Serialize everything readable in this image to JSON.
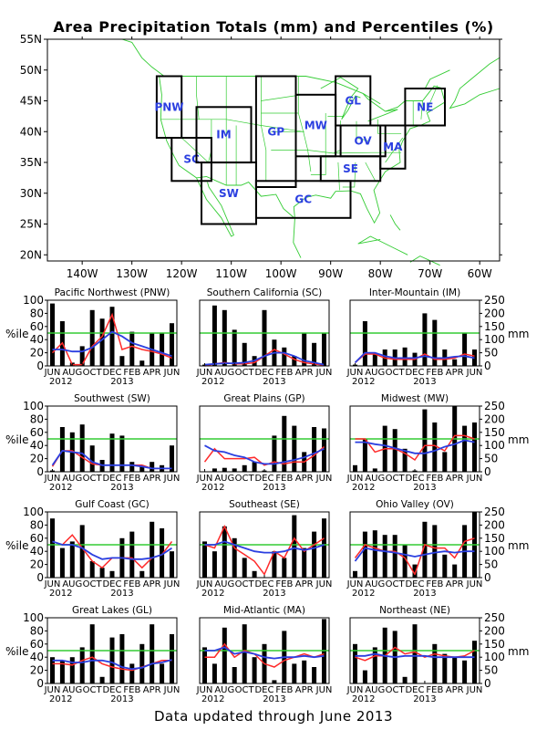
{
  "title": "Area Precipitation Totals (mm) and Percentiles (%)",
  "footer": "Data updated through June 2013",
  "map": {
    "lon_ticks": [
      "140W",
      "130W",
      "120W",
      "110W",
      "100W",
      "90W",
      "80W",
      "70W",
      "60W"
    ],
    "lat_ticks": [
      "55N",
      "50N",
      "45N",
      "40N",
      "35N",
      "30N",
      "25N",
      "20N"
    ],
    "regions": [
      {
        "code": "PNW",
        "lon": [
          -125,
          -120
        ],
        "lat": [
          39,
          49
        ]
      },
      {
        "code": "SC",
        "lon": [
          -122,
          -114
        ],
        "lat": [
          32,
          39
        ]
      },
      {
        "code": "IM",
        "lon": [
          -117,
          -106
        ],
        "lat": [
          35,
          44
        ]
      },
      {
        "code": "SW",
        "lon": [
          -116,
          -105
        ],
        "lat": [
          25,
          35
        ]
      },
      {
        "code": "GP",
        "lon": [
          -105,
          -97
        ],
        "lat": [
          31,
          49
        ]
      },
      {
        "code": "MW",
        "lon": [
          -97,
          -89
        ],
        "lat": [
          36,
          46
        ]
      },
      {
        "code": "GL",
        "lon": [
          -89,
          -82
        ],
        "lat": [
          41,
          49
        ]
      },
      {
        "code": "OV",
        "lon": [
          -88,
          -79
        ],
        "lat": [
          36,
          41
        ]
      },
      {
        "code": "NE",
        "lon": [
          -75,
          -67
        ],
        "lat": [
          41,
          47
        ]
      },
      {
        "code": "MA",
        "lon": [
          -80,
          -75
        ],
        "lat": [
          34,
          41
        ]
      },
      {
        "code": "SE",
        "lon": [
          -92,
          -80
        ],
        "lat": [
          32,
          36
        ]
      },
      {
        "code": "GC",
        "lon": [
          -105,
          -86
        ],
        "lat": [
          26,
          32
        ]
      }
    ],
    "colors": {
      "region_box": "#000000",
      "region_label": "#2b3fe0",
      "map_lines": "#33cc33"
    }
  },
  "chart_data": {
    "type": "bar",
    "months": [
      "JUN",
      "JUL",
      "AUG",
      "SEP",
      "OCT",
      "NOV",
      "DEC",
      "JAN",
      "FEB",
      "MAR",
      "APR",
      "MAY",
      "JUN"
    ],
    "x_tick_labels": [
      "JUN",
      "AUG",
      "OCT",
      "DEC",
      "FEB",
      "APR",
      "JUN"
    ],
    "year_labels": [
      "2012",
      "2013"
    ],
    "left_axis": {
      "label": "%ile",
      "ticks": [
        0,
        20,
        40,
        60,
        80,
        100
      ],
      "ylim": [
        0,
        100
      ]
    },
    "right_axis": {
      "label": "mm",
      "ticks": [
        0,
        50,
        100,
        150,
        200,
        250
      ],
      "ylim": [
        0,
        250
      ]
    },
    "reference_line": 50,
    "colors": {
      "bars": "#000000",
      "red_line": "#ff2a2a",
      "blue_line": "#2b3fe0",
      "reference": "#33cc33"
    },
    "panels": [
      {
        "title": "Pacific Northwest (PNW)",
        "bars": [
          95,
          68,
          5,
          30,
          85,
          72,
          90,
          15,
          52,
          8,
          50,
          50,
          65
        ],
        "red": [
          20,
          35,
          2,
          2,
          30,
          45,
          78,
          25,
          30,
          25,
          22,
          18,
          12
        ],
        "blue": [
          25,
          25,
          22,
          22,
          28,
          40,
          52,
          45,
          35,
          30,
          25,
          20,
          15
        ]
      },
      {
        "title": "Southern California (SC)",
        "bars": [
          2,
          92,
          85,
          55,
          35,
          15,
          85,
          40,
          28,
          15,
          50,
          35,
          50
        ],
        "red": [
          0,
          3,
          5,
          3,
          3,
          5,
          15,
          25,
          18,
          10,
          5,
          3,
          1
        ],
        "blue": [
          2,
          3,
          4,
          4,
          5,
          8,
          15,
          20,
          20,
          15,
          8,
          5,
          2
        ]
      },
      {
        "title": "Inter-Mountain (IM)",
        "bars": [
          2,
          68,
          20,
          25,
          25,
          28,
          20,
          80,
          70,
          25,
          10,
          50,
          25
        ],
        "red": [
          5,
          18,
          18,
          12,
          10,
          10,
          10,
          18,
          10,
          10,
          12,
          18,
          15
        ],
        "blue": [
          5,
          20,
          20,
          15,
          12,
          12,
          12,
          15,
          12,
          12,
          14,
          15,
          12
        ]
      },
      {
        "title": "Southwest (SW)",
        "bars": [
          2,
          68,
          60,
          72,
          40,
          18,
          58,
          55,
          15,
          10,
          15,
          10,
          40
        ],
        "red": [
          8,
          32,
          32,
          22,
          12,
          10,
          10,
          10,
          10,
          10,
          5,
          5,
          5
        ],
        "blue": [
          10,
          32,
          30,
          28,
          15,
          10,
          10,
          10,
          10,
          8,
          5,
          5,
          5
        ]
      },
      {
        "title": "Great Plains (GP)",
        "bars": [
          0,
          5,
          6,
          5,
          10,
          15,
          2,
          55,
          85,
          70,
          30,
          68,
          66
        ],
        "red": [
          15,
          35,
          20,
          20,
          20,
          22,
          10,
          15,
          12,
          15,
          15,
          25,
          38
        ],
        "blue": [
          40,
          32,
          30,
          25,
          22,
          15,
          12,
          12,
          15,
          18,
          22,
          28,
          35
        ]
      },
      {
        "title": "Midwest (MW)",
        "bars": [
          10,
          50,
          5,
          70,
          65,
          35,
          2,
          95,
          75,
          30,
          100,
          70,
          75
        ],
        "red": [
          50,
          50,
          30,
          35,
          35,
          28,
          18,
          40,
          40,
          32,
          55,
          55,
          50
        ],
        "blue": [
          45,
          45,
          42,
          40,
          36,
          32,
          28,
          28,
          32,
          38,
          42,
          48,
          45
        ]
      },
      {
        "title": "Gulf Coast (GC)",
        "bars": [
          90,
          45,
          55,
          80,
          25,
          15,
          10,
          60,
          70,
          10,
          85,
          75,
          40
        ],
        "red": [
          55,
          50,
          65,
          45,
          25,
          15,
          30,
          30,
          30,
          15,
          30,
          35,
          55
        ],
        "blue": [
          55,
          50,
          50,
          45,
          35,
          28,
          30,
          30,
          28,
          28,
          30,
          35,
          45
        ]
      },
      {
        "title": "Southeast (SE)",
        "bars": [
          55,
          40,
          78,
          60,
          30,
          10,
          0,
          40,
          30,
          95,
          45,
          70,
          90
        ],
        "red": [
          50,
          45,
          78,
          45,
          35,
          25,
          5,
          40,
          30,
          60,
          40,
          50,
          60
        ],
        "blue": [
          50,
          50,
          55,
          50,
          45,
          40,
          38,
          38,
          40,
          45,
          42,
          45,
          50
        ]
      },
      {
        "title": "Ohio Valley (OV)",
        "bars": [
          10,
          70,
          72,
          65,
          65,
          50,
          20,
          85,
          80,
          35,
          20,
          80,
          100
        ],
        "red": [
          30,
          50,
          45,
          40,
          40,
          30,
          5,
          50,
          45,
          45,
          30,
          55,
          60
        ],
        "blue": [
          25,
          45,
          42,
          40,
          38,
          35,
          32,
          35,
          38,
          40,
          38,
          40,
          40
        ]
      },
      {
        "title": "Great Lakes (GL)",
        "bars": [
          40,
          35,
          40,
          55,
          90,
          10,
          70,
          75,
          30,
          60,
          90,
          30,
          75
        ],
        "red": [
          30,
          30,
          28,
          35,
          40,
          30,
          25,
          22,
          20,
          25,
          30,
          35,
          35
        ],
        "blue": [
          35,
          35,
          32,
          32,
          35,
          35,
          32,
          25,
          22,
          24,
          30,
          32,
          36
        ]
      },
      {
        "title": "Mid-Atlantic (MA)",
        "bars": [
          55,
          30,
          85,
          25,
          90,
          40,
          60,
          5,
          80,
          30,
          35,
          25,
          98
        ],
        "red": [
          40,
          40,
          60,
          40,
          50,
          45,
          30,
          25,
          35,
          40,
          45,
          40,
          45
        ],
        "blue": [
          50,
          50,
          55,
          45,
          48,
          45,
          40,
          38,
          40,
          40,
          42,
          40,
          42
        ]
      },
      {
        "title": "Northeast (NE)",
        "bars": [
          60,
          20,
          55,
          85,
          80,
          10,
          90,
          0,
          60,
          45,
          40,
          35,
          65
        ],
        "red": [
          40,
          35,
          42,
          42,
          55,
          45,
          48,
          40,
          45,
          42,
          40,
          42,
          50
        ],
        "blue": [
          42,
          42,
          45,
          42,
          40,
          42,
          42,
          42,
          40,
          40,
          40,
          40,
          40
        ]
      }
    ]
  }
}
